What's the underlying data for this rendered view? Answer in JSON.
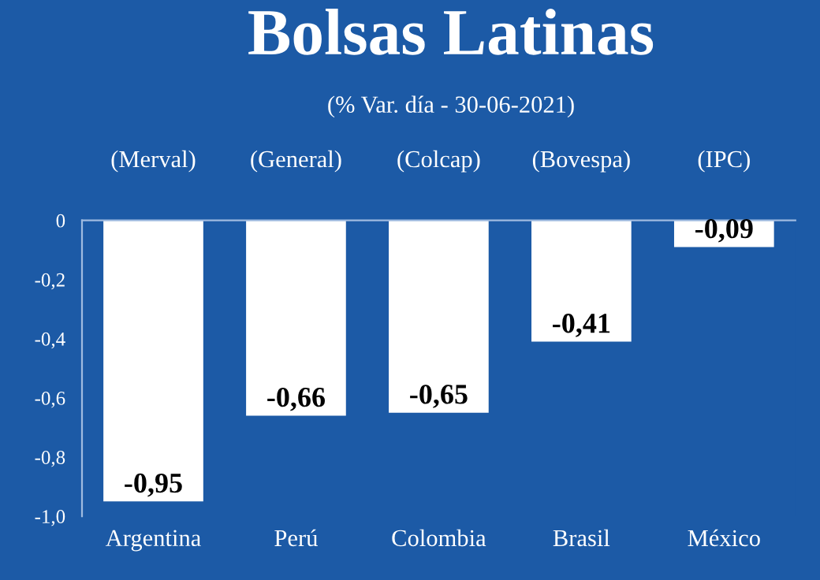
{
  "chart_data": {
    "type": "bar",
    "title": "Bolsas Latinas",
    "subtitle": "(% Var. día - 30-06-2021)",
    "categories": [
      "Argentina",
      "Perú",
      "Colombia",
      "Brasil",
      "México"
    ],
    "values": [
      -0.95,
      -0.66,
      -0.65,
      -0.41,
      -0.09
    ],
    "value_labels": [
      "-0,95",
      "-0,66",
      "-0,65",
      "-0,41",
      "-0,09"
    ],
    "color": "#ffffff",
    "ylim": [
      -1.0,
      0
    ],
    "yticks": [
      {
        "value": 0,
        "label": "0"
      },
      {
        "value": -0.2,
        "label": "-0,2"
      },
      {
        "value": -0.4,
        "label": "-0,4"
      },
      {
        "value": -0.6,
        "label": "-0,6"
      },
      {
        "value": -0.8,
        "label": "-0,8"
      },
      {
        "value": -1.0,
        "label": "-1,0"
      }
    ],
    "annotations": [
      "(Merval)",
      "(General)",
      "(Colcap)",
      "(Bovespa)",
      "(IPC)"
    ],
    "grid": false,
    "legend": false
  }
}
